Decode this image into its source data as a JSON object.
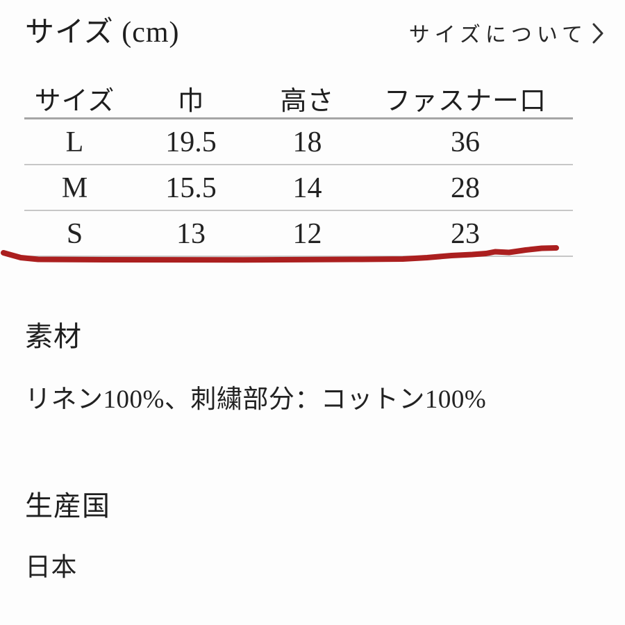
{
  "size_section": {
    "title": "サイズ (cm)",
    "link_label": "サイズについて"
  },
  "size_table": {
    "headers": [
      "サイズ",
      "巾",
      "高さ",
      "ファスナー口"
    ],
    "rows": [
      [
        "L",
        "19.5",
        "18",
        "36"
      ],
      [
        "M",
        "15.5",
        "14",
        "28"
      ],
      [
        "S",
        "13",
        "12",
        "23"
      ]
    ]
  },
  "annotation": {
    "color": "#ab1f1f"
  },
  "material_section": {
    "heading": "素材",
    "body": "リネン100%、刺繍部分：コットン100%"
  },
  "origin_section": {
    "heading": "生産国",
    "body": "日本"
  }
}
